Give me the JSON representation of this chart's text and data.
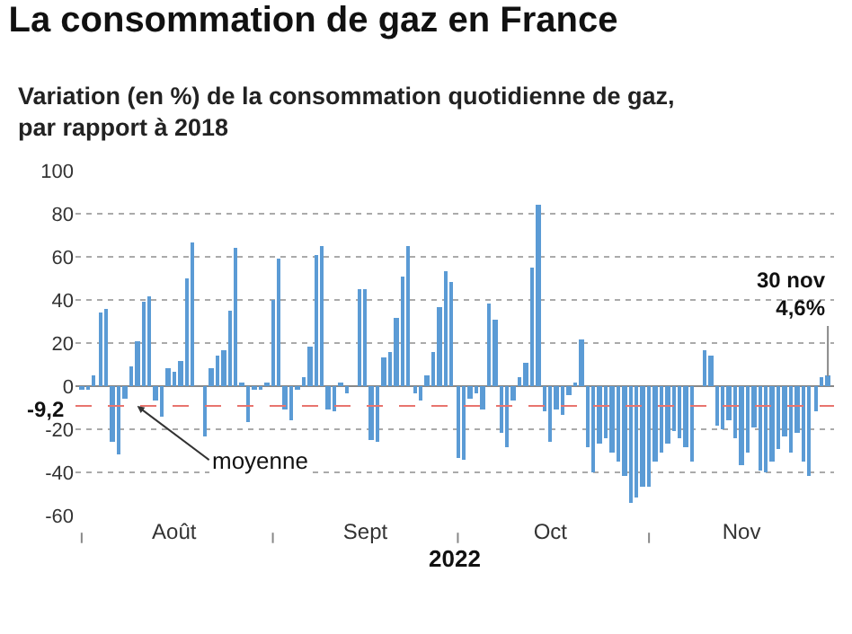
{
  "chart_data": {
    "type": "bar",
    "title": "La consommation de gaz en France",
    "subtitle": "Variation (en %) de la consommation quotidienne de gaz,\npar rapport à 2018",
    "xlabel": "2022",
    "x": [
      "2022-08-01",
      "2022-08-02",
      "2022-08-03",
      "2022-08-04",
      "2022-08-05",
      "2022-08-06",
      "2022-08-07",
      "2022-08-08",
      "2022-08-09",
      "2022-08-10",
      "2022-08-11",
      "2022-08-12",
      "2022-08-13",
      "2022-08-14",
      "2022-08-15",
      "2022-08-16",
      "2022-08-17",
      "2022-08-18",
      "2022-08-19",
      "2022-08-20",
      "2022-08-21",
      "2022-08-22",
      "2022-08-23",
      "2022-08-24",
      "2022-08-25",
      "2022-08-26",
      "2022-08-27",
      "2022-08-28",
      "2022-08-29",
      "2022-08-30",
      "2022-08-31",
      "2022-09-01",
      "2022-09-02",
      "2022-09-03",
      "2022-09-04",
      "2022-09-05",
      "2022-09-06",
      "2022-09-07",
      "2022-09-08",
      "2022-09-09",
      "2022-09-10",
      "2022-09-11",
      "2022-09-12",
      "2022-09-13",
      "2022-09-14",
      "2022-09-15",
      "2022-09-16",
      "2022-09-17",
      "2022-09-18",
      "2022-09-19",
      "2022-09-20",
      "2022-09-21",
      "2022-09-22",
      "2022-09-23",
      "2022-09-24",
      "2022-09-25",
      "2022-09-26",
      "2022-09-27",
      "2022-09-28",
      "2022-09-29",
      "2022-09-30",
      "2022-10-01",
      "2022-10-02",
      "2022-10-03",
      "2022-10-04",
      "2022-10-05",
      "2022-10-06",
      "2022-10-07",
      "2022-10-08",
      "2022-10-09",
      "2022-10-10",
      "2022-10-11",
      "2022-10-12",
      "2022-10-13",
      "2022-10-14",
      "2022-10-15",
      "2022-10-16",
      "2022-10-17",
      "2022-10-18",
      "2022-10-19",
      "2022-10-20",
      "2022-10-21",
      "2022-10-22",
      "2022-10-23",
      "2022-10-24",
      "2022-10-25",
      "2022-10-26",
      "2022-10-27",
      "2022-10-28",
      "2022-10-29",
      "2022-10-30",
      "2022-10-31",
      "2022-11-01",
      "2022-11-02",
      "2022-11-03",
      "2022-11-04",
      "2022-11-05",
      "2022-11-06",
      "2022-11-07",
      "2022-11-08",
      "2022-11-09",
      "2022-11-10",
      "2022-11-11",
      "2022-11-12",
      "2022-11-13",
      "2022-11-14",
      "2022-11-15",
      "2022-11-16",
      "2022-11-17",
      "2022-11-18",
      "2022-11-19",
      "2022-11-20",
      "2022-11-21",
      "2022-11-22",
      "2022-11-23",
      "2022-11-24",
      "2022-11-25",
      "2022-11-26",
      "2022-11-27",
      "2022-11-28",
      "2022-11-29",
      "2022-11-30"
    ],
    "series": [
      {
        "color": "#5b9bd5",
        "values": [
          -1,
          -1,
          5,
          34,
          36,
          -26,
          -32,
          -6,
          9,
          21,
          39,
          42,
          -7,
          -14,
          8,
          7,
          12,
          50,
          67,
          0,
          -23,
          8,
          14,
          17,
          35,
          64,
          1,
          -17,
          -2,
          -2,
          2,
          40,
          59,
          -11,
          -16,
          -1,
          4,
          18,
          61,
          65,
          -11,
          -12,
          1,
          -3,
          0,
          45,
          45,
          -25,
          -26,
          13,
          16,
          32,
          51,
          65,
          -3,
          -7,
          5,
          16,
          37,
          53,
          48,
          -33,
          -34,
          -6,
          -3,
          -11,
          38,
          31,
          -22,
          -28,
          -7,
          4,
          11,
          55,
          84,
          -12,
          -26,
          -11,
          -13,
          -4,
          1,
          22,
          -28,
          -40,
          -27,
          -24,
          -31,
          -35,
          -42,
          -54,
          -52,
          -47,
          -47,
          -35,
          -31,
          -27,
          -21,
          -24,
          -28,
          -35,
          0,
          17,
          14,
          -18,
          -20,
          -16,
          -24,
          -37,
          -31,
          -19,
          -39,
          -40,
          -35,
          -29,
          -23,
          -31,
          -22,
          -35,
          -42,
          -12,
          4,
          4.6
        ]
      }
    ],
    "xlim": [
      "2022-07-31",
      "2022-12-01"
    ],
    "xticks": [
      {
        "value": "2022-08-01",
        "label": null
      },
      {
        "value": "2022-08-16",
        "label": "Août"
      },
      {
        "value": "2022-09-01",
        "label": null
      },
      {
        "value": "2022-09-16",
        "label": "Sept"
      },
      {
        "value": "2022-10-01",
        "label": null
      },
      {
        "value": "2022-10-16",
        "label": "Oct"
      },
      {
        "value": "2022-11-01",
        "label": null
      },
      {
        "value": "2022-11-16",
        "label": "Nov"
      }
    ],
    "ylim": [
      -60,
      100
    ],
    "yticks": [
      -60,
      -40,
      -20,
      0,
      20,
      40,
      60,
      80,
      100
    ],
    "grid": "y",
    "ref_lines": [
      {
        "axis": "y",
        "value": -9.2,
        "label": "-9,2",
        "color": "#e8746e",
        "line_style": "dashed"
      }
    ],
    "annotations": [
      {
        "text": "moyenne",
        "x": "2022-08-10",
        "y": -9.2
      },
      {
        "text": "30 nov\n4,6%",
        "x": "2022-11-30",
        "y": 4.6
      }
    ]
  }
}
